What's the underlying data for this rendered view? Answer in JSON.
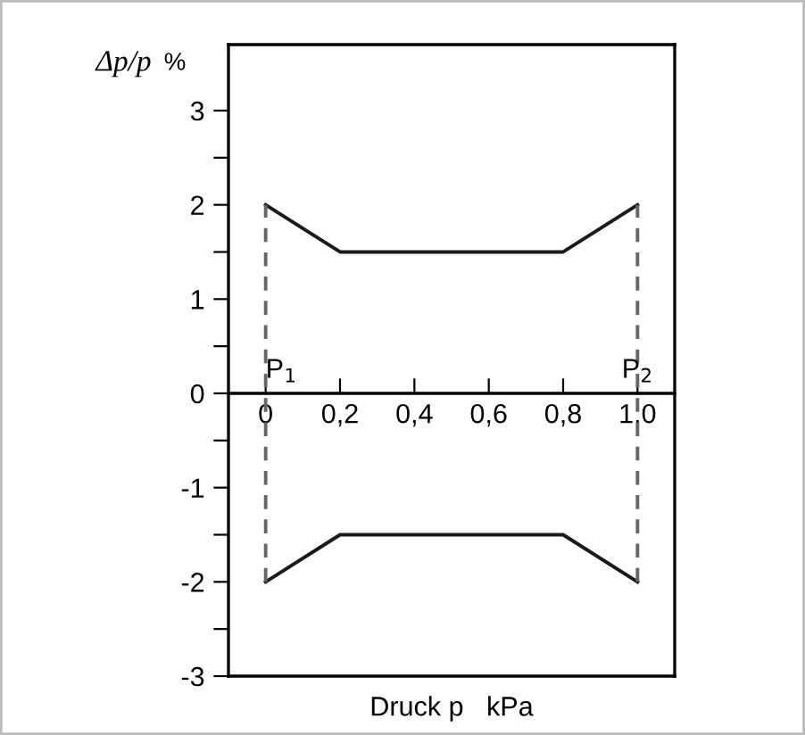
{
  "chart_data": {
    "type": "line",
    "xlabel": "Druck p   kPa",
    "ylabel": "Δp/p",
    "annotations": [
      "%",
      {
        "text": "P$_{1}$",
        "x": 0,
        "y": 0
      },
      {
        "text": "P$_{2}$",
        "x": 1.0,
        "y": 0
      }
    ],
    "series": [
      {
        "x": [
          0,
          0.2,
          0.8,
          1.0
        ],
        "values": [
          2,
          1.5,
          1.5,
          2
        ],
        "color": "#1a1a1a",
        "line_style": "solid"
      },
      {
        "x": [
          0,
          0.2,
          0.8,
          1.0
        ],
        "values": [
          -2,
          -1.5,
          -1.5,
          -2
        ],
        "color": "#1a1a1a",
        "line_style": "solid"
      },
      {
        "x": [
          0,
          0
        ],
        "values": [
          -2,
          2
        ],
        "color": "#666666",
        "line_style": "dashed"
      },
      {
        "x": [
          1.0,
          1.0
        ],
        "values": [
          -2,
          2
        ],
        "color": "#666666",
        "line_style": "dashed"
      }
    ],
    "xlim": [
      -0.1,
      1.1
    ],
    "ylim": [
      -3,
      3.7
    ],
    "xticks": [
      0,
      {
        "value": 0.2,
        "label": "0,2"
      },
      {
        "value": 0.4,
        "label": "0,4"
      },
      {
        "value": 0.6,
        "label": "0,6"
      },
      {
        "value": 0.8,
        "label": "0,8"
      },
      {
        "value": 1.0,
        "label": "1,0"
      }
    ],
    "yticks": [
      -3,
      {
        "value": -2.5,
        "label": null
      },
      -2,
      {
        "value": -1.5,
        "label": null
      },
      -1,
      {
        "value": -0.5,
        "label": null
      },
      0,
      {
        "value": 0.5,
        "label": null
      },
      1,
      {
        "value": 1.5,
        "label": null
      },
      2,
      {
        "value": 2.5,
        "label": null
      },
      3
    ],
    "grid": false,
    "legend": false,
    "marker": "none"
  }
}
